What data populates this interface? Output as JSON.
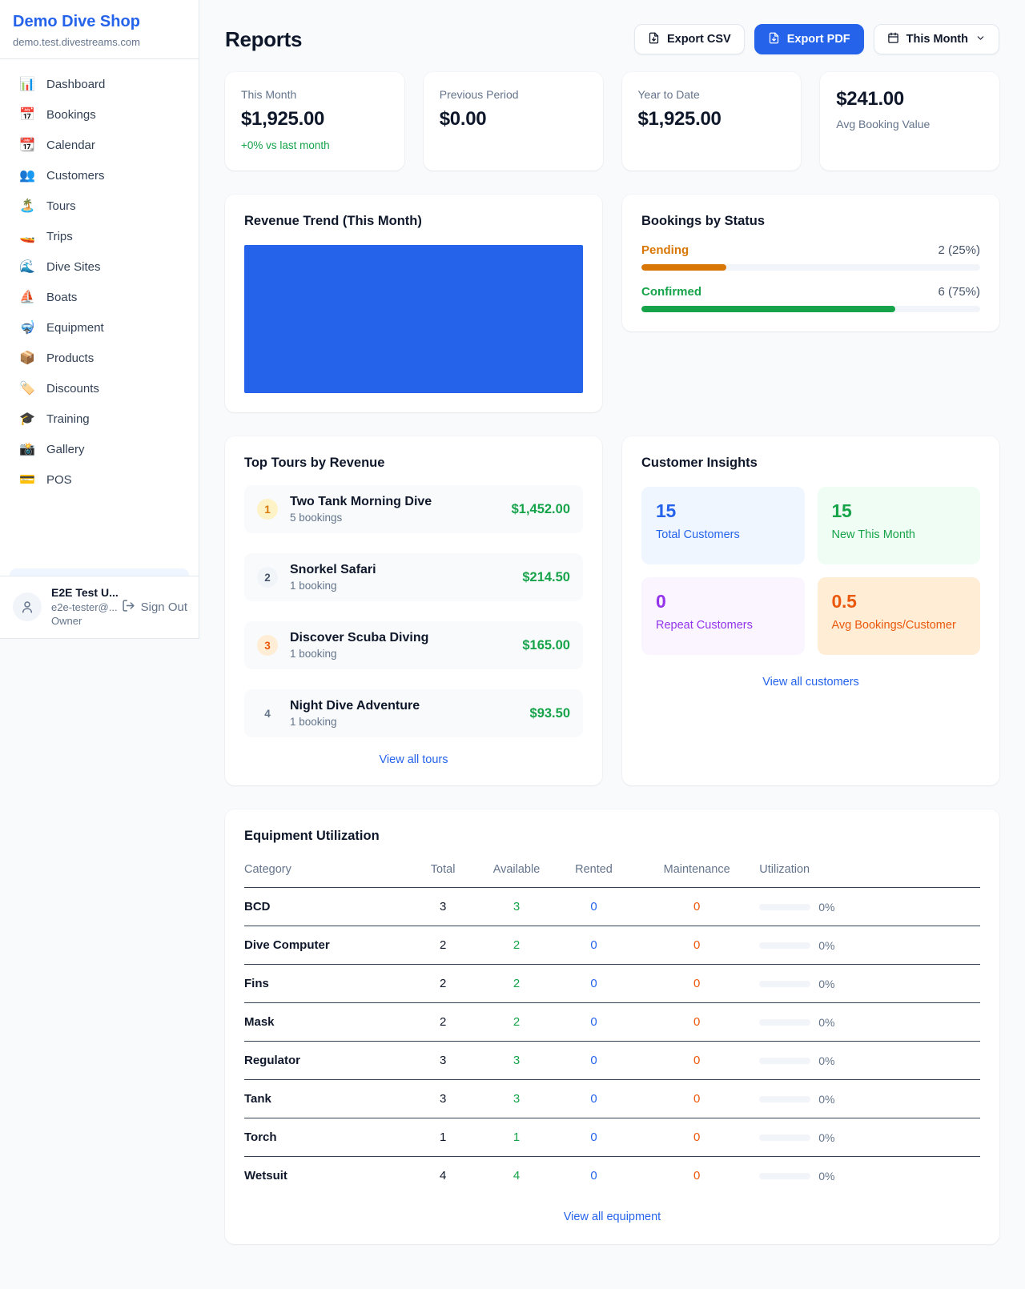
{
  "colors": {
    "accent_blue": "#2563eb",
    "green": "#16a34a",
    "pending_orange": "#d97706",
    "deep_orange": "#ea580c",
    "purple": "#9333ea"
  },
  "sidebar": {
    "shop_name": "Demo Dive Shop",
    "shop_domain": "demo.test.divestreams.com",
    "nav": [
      {
        "label": "Dashboard",
        "icon": "📊"
      },
      {
        "label": "Bookings",
        "icon": "📅"
      },
      {
        "label": "Calendar",
        "icon": "📆"
      },
      {
        "label": "Customers",
        "icon": "👥"
      },
      {
        "label": "Tours",
        "icon": "🏝️"
      },
      {
        "label": "Trips",
        "icon": "🚤"
      },
      {
        "label": "Dive Sites",
        "icon": "🌊"
      },
      {
        "label": "Boats",
        "icon": "⛵"
      },
      {
        "label": "Equipment",
        "icon": "🤿"
      },
      {
        "label": "Products",
        "icon": "📦"
      },
      {
        "label": "Discounts",
        "icon": "🏷️"
      },
      {
        "label": "Training",
        "icon": "🎓"
      },
      {
        "label": "Gallery",
        "icon": "📸"
      },
      {
        "label": "POS",
        "icon": "💳"
      }
    ],
    "user": {
      "name": "E2E Test U...",
      "email": "e2e-tester@...",
      "role": "Owner",
      "sign_out_label": "Sign Out"
    }
  },
  "header": {
    "title": "Reports",
    "export_csv_label": "Export CSV",
    "export_pdf_label": "Export PDF",
    "period_label": "This Month"
  },
  "stats": [
    {
      "label": "This Month",
      "value": "$1,925.00",
      "note": "+0% vs last month"
    },
    {
      "label": "Previous Period",
      "value": "$0.00"
    },
    {
      "label": "Year to Date",
      "value": "$1,925.00"
    },
    {
      "label": "Avg Booking Value",
      "value": "$241.00"
    }
  ],
  "revenue_trend": {
    "title": "Revenue Trend (This Month)",
    "bar_color": "#2563eb"
  },
  "bookings_by_status": {
    "title": "Bookings by Status",
    "items": [
      {
        "label": "Pending",
        "value_text": "2 (25%)",
        "pct": 25
      },
      {
        "label": "Confirmed",
        "value_text": "6 (75%)",
        "pct": 75
      }
    ]
  },
  "top_tours": {
    "title": "Top Tours by Revenue",
    "rows": [
      {
        "rank": "1",
        "name": "Two Tank Morning Dive",
        "bookings": "5 bookings",
        "amount": "$1,452.00"
      },
      {
        "rank": "2",
        "name": "Snorkel Safari",
        "bookings": "1 booking",
        "amount": "$214.50"
      },
      {
        "rank": "3",
        "name": "Discover Scuba Diving",
        "bookings": "1 booking",
        "amount": "$165.00"
      },
      {
        "rank": "4",
        "name": "Night Dive Adventure",
        "bookings": "1 booking",
        "amount": "$93.50"
      }
    ],
    "view_all_label": "View all tours"
  },
  "customer_insights": {
    "title": "Customer Insights",
    "tiles": [
      {
        "value": "15",
        "label": "Total Customers"
      },
      {
        "value": "15",
        "label": "New This Month"
      },
      {
        "value": "0",
        "label": "Repeat Customers"
      },
      {
        "value": "0.5",
        "label": "Avg Bookings/Customer"
      }
    ],
    "view_all_label": "View all customers"
  },
  "equipment": {
    "title": "Equipment Utilization",
    "columns": [
      "Category",
      "Total",
      "Available",
      "Rented",
      "Maintenance",
      "Utilization"
    ],
    "rows": [
      {
        "category": "BCD",
        "total": "3",
        "available": "3",
        "rented": "0",
        "maintenance": "0",
        "utilization_pct": 0,
        "utilization_text": "0%"
      },
      {
        "category": "Dive Computer",
        "total": "2",
        "available": "2",
        "rented": "0",
        "maintenance": "0",
        "utilization_pct": 0,
        "utilization_text": "0%"
      },
      {
        "category": "Fins",
        "total": "2",
        "available": "2",
        "rented": "0",
        "maintenance": "0",
        "utilization_pct": 0,
        "utilization_text": "0%"
      },
      {
        "category": "Mask",
        "total": "2",
        "available": "2",
        "rented": "0",
        "maintenance": "0",
        "utilization_pct": 0,
        "utilization_text": "0%"
      },
      {
        "category": "Regulator",
        "total": "3",
        "available": "3",
        "rented": "0",
        "maintenance": "0",
        "utilization_pct": 0,
        "utilization_text": "0%"
      },
      {
        "category": "Tank",
        "total": "3",
        "available": "3",
        "rented": "0",
        "maintenance": "0",
        "utilization_pct": 0,
        "utilization_text": "0%"
      },
      {
        "category": "Torch",
        "total": "1",
        "available": "1",
        "rented": "0",
        "maintenance": "0",
        "utilization_pct": 0,
        "utilization_text": "0%"
      },
      {
        "category": "Wetsuit",
        "total": "4",
        "available": "4",
        "rented": "0",
        "maintenance": "0",
        "utilization_pct": 0,
        "utilization_text": "0%"
      }
    ],
    "view_all_label": "View all equipment"
  }
}
